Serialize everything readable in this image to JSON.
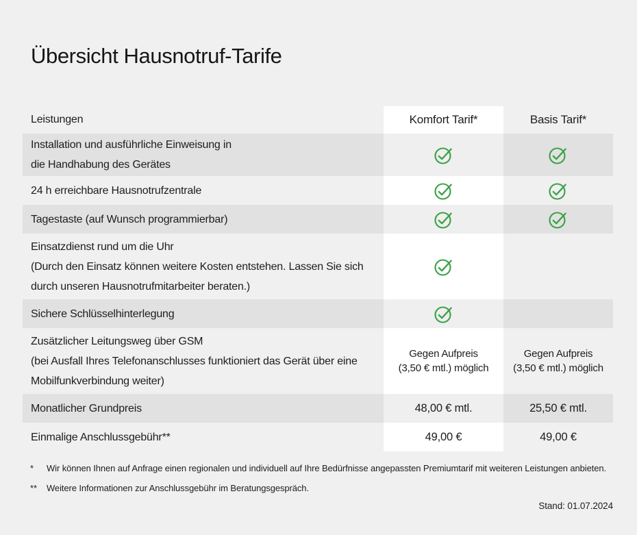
{
  "page": {
    "title": "Übersicht Hausnotruf-Tarife"
  },
  "colors": {
    "background": "#f0f0f0",
    "row_stripe": "#e2e2e2",
    "highlight_column": "#ffffff",
    "check_green": "#3ba146",
    "text": "#1d1d1b"
  },
  "icons": {
    "check": "check-circle-icon"
  },
  "table": {
    "header": {
      "feature": "Leistungen",
      "komfort": "Komfort Tarif*",
      "basis": "Basis Tarif*"
    },
    "rows": [
      {
        "striped": true,
        "feature_lines": [
          "Installation und ausführliche Einweisung in",
          "die Handhabung des Gerätes"
        ],
        "komfort": {
          "type": "check"
        },
        "basis": {
          "type": "check"
        }
      },
      {
        "striped": false,
        "feature_lines": [
          "24 h erreichbare Hausnotrufzentrale"
        ],
        "komfort": {
          "type": "check"
        },
        "basis": {
          "type": "check"
        }
      },
      {
        "striped": true,
        "feature_lines": [
          "Tagestaste (auf Wunsch programmierbar)"
        ],
        "komfort": {
          "type": "check"
        },
        "basis": {
          "type": "check"
        }
      },
      {
        "striped": false,
        "feature_lines": [
          "Einsatzdienst rund um die Uhr",
          "(Durch den Einsatz können weitere Kosten entstehen. Lassen Sie sich",
          "durch unseren Hausnotrufmitarbeiter beraten.)"
        ],
        "komfort": {
          "type": "check"
        },
        "basis": {
          "type": "none"
        }
      },
      {
        "striped": true,
        "feature_lines": [
          "Sichere Schlüsselhinterlegung"
        ],
        "komfort": {
          "type": "check"
        },
        "basis": {
          "type": "none"
        }
      },
      {
        "striped": false,
        "feature_lines": [
          "Zusätzlicher Leitungsweg über GSM",
          "(bei Ausfall Ihres Telefonanschlusses funktioniert das Gerät über eine",
          "Mobilfunkverbindung weiter)"
        ],
        "komfort": {
          "type": "text",
          "lines": [
            "Gegen Aufpreis",
            "(3,50 € mtl.) möglich"
          ]
        },
        "basis": {
          "type": "text",
          "lines": [
            "Gegen Aufpreis",
            "(3,50 € mtl.) möglich"
          ]
        }
      },
      {
        "striped": true,
        "feature_lines": [
          "Monatlicher Grundpreis"
        ],
        "komfort": {
          "type": "text",
          "lines": [
            "48,00 € mtl."
          ]
        },
        "basis": {
          "type": "text",
          "lines": [
            "25,50 € mtl."
          ]
        }
      },
      {
        "striped": false,
        "feature_lines": [
          "Einmalige Anschlussgebühr**"
        ],
        "komfort": {
          "type": "text",
          "lines": [
            "49,00 €"
          ]
        },
        "basis": {
          "type": "text",
          "lines": [
            "49,00 €"
          ]
        }
      }
    ]
  },
  "footnotes": [
    {
      "marker": "*",
      "text": "Wir können Ihnen auf Anfrage einen regionalen und individuell auf Ihre Bedürfnisse angepassten Premiumtarif mit weiteren Leistungen anbieten."
    },
    {
      "marker": "**",
      "text": "Weitere Informationen zur Anschlussgebühr im Beratungsgespräch."
    }
  ],
  "status": {
    "date_label": "Stand: 01.07.2024"
  }
}
